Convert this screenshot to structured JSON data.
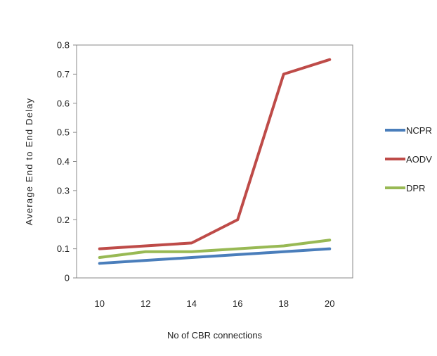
{
  "chart_data": {
    "type": "line",
    "title": "",
    "xlabel": "No of CBR connections",
    "ylabel": "Average End to End Delay",
    "x": [
      10,
      12,
      14,
      16,
      18,
      20
    ],
    "x_tick_labels": [
      "10",
      "12",
      "14",
      "16",
      "18",
      "20"
    ],
    "ylim": [
      0,
      0.8
    ],
    "y_ticks": [
      0,
      0.1,
      0.2,
      0.3,
      0.4,
      0.5,
      0.6,
      0.7,
      0.8
    ],
    "y_tick_labels": [
      "0",
      "0.1",
      "0.2",
      "0.3",
      "0.4",
      "0.5",
      "0.6",
      "0.7",
      "0.8"
    ],
    "grid": false,
    "legend_position": "right",
    "series": [
      {
        "name": "NCPR",
        "color": "#4a7ebb",
        "values": [
          0.05,
          0.06,
          0.07,
          0.08,
          0.09,
          0.1
        ]
      },
      {
        "name": "AODV",
        "color": "#be4b48",
        "values": [
          0.1,
          0.11,
          0.12,
          0.2,
          0.7,
          0.75
        ]
      },
      {
        "name": "DPR",
        "color": "#98b954",
        "values": [
          0.07,
          0.09,
          0.09,
          0.1,
          0.11,
          0.13
        ]
      }
    ]
  }
}
